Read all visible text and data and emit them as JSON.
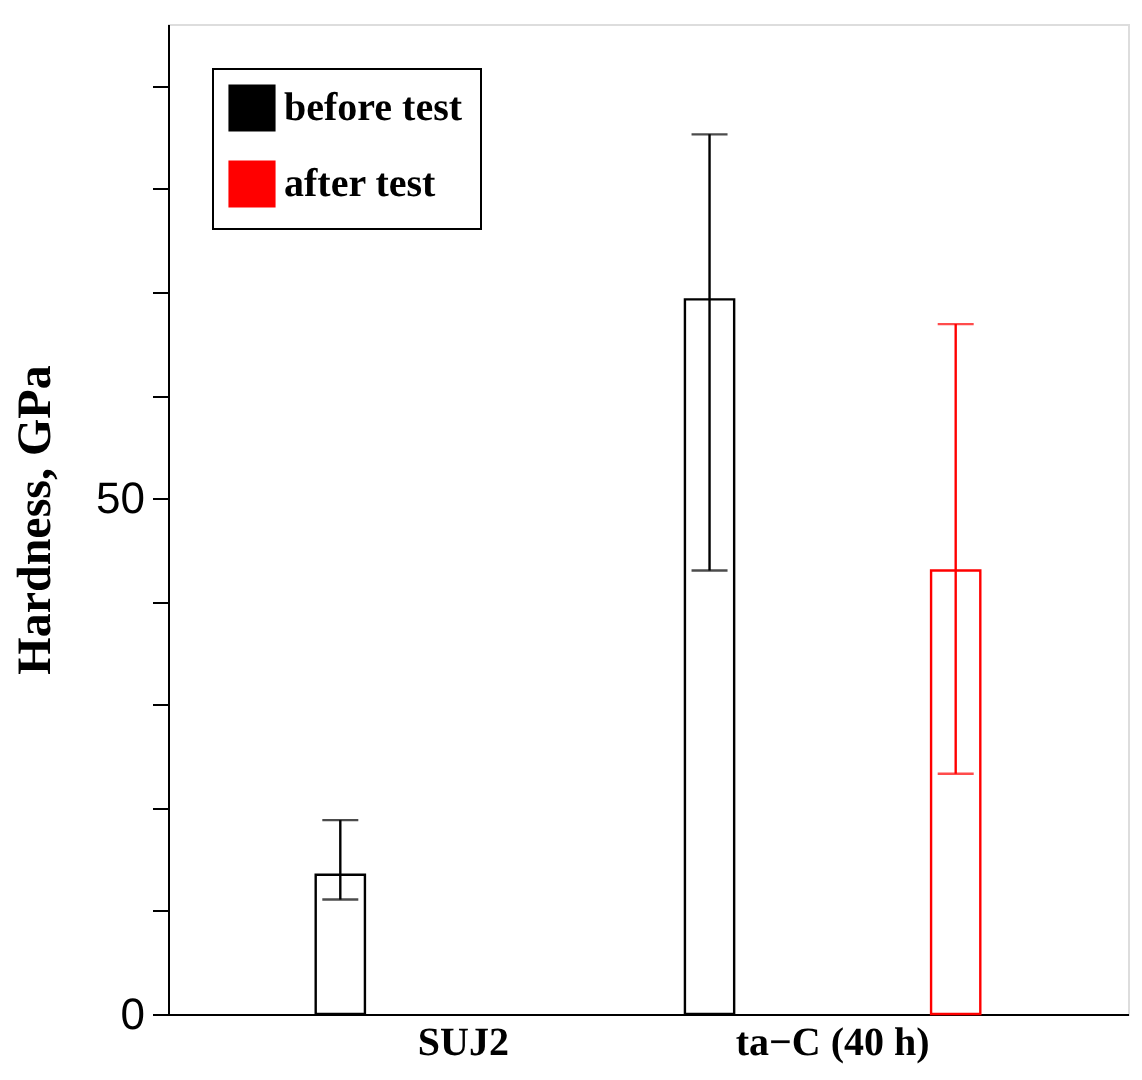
{
  "chart_data": {
    "type": "bar",
    "ylabel": "Hardness, GPa",
    "categories": [
      "SUJ2",
      "ta−C (40 h)"
    ],
    "series": [
      {
        "name": "before test",
        "color": "#000000",
        "values": [
          13.5,
          69.3
        ],
        "errors": [
          [
            11.1,
            18.8
          ],
          [
            43,
            85.3
          ]
        ]
      },
      {
        "name": "after test",
        "color": "#ff0000",
        "values": [
          null,
          43
        ],
        "errors": [
          null,
          [
            23.3,
            66.9
          ]
        ]
      }
    ],
    "ylim": [
      0,
      96
    ],
    "yticks": [
      0,
      {
        "value": 10,
        "label": null
      },
      {
        "value": 20,
        "label": null
      },
      {
        "value": 30,
        "label": null
      },
      {
        "value": 40,
        "label": null
      },
      50,
      {
        "value": 60,
        "label": null
      },
      {
        "value": 70,
        "label": null
      },
      {
        "value": 80,
        "label": null
      },
      {
        "value": 90,
        "label": null
      }
    ],
    "grid": false,
    "legend": "top left"
  }
}
